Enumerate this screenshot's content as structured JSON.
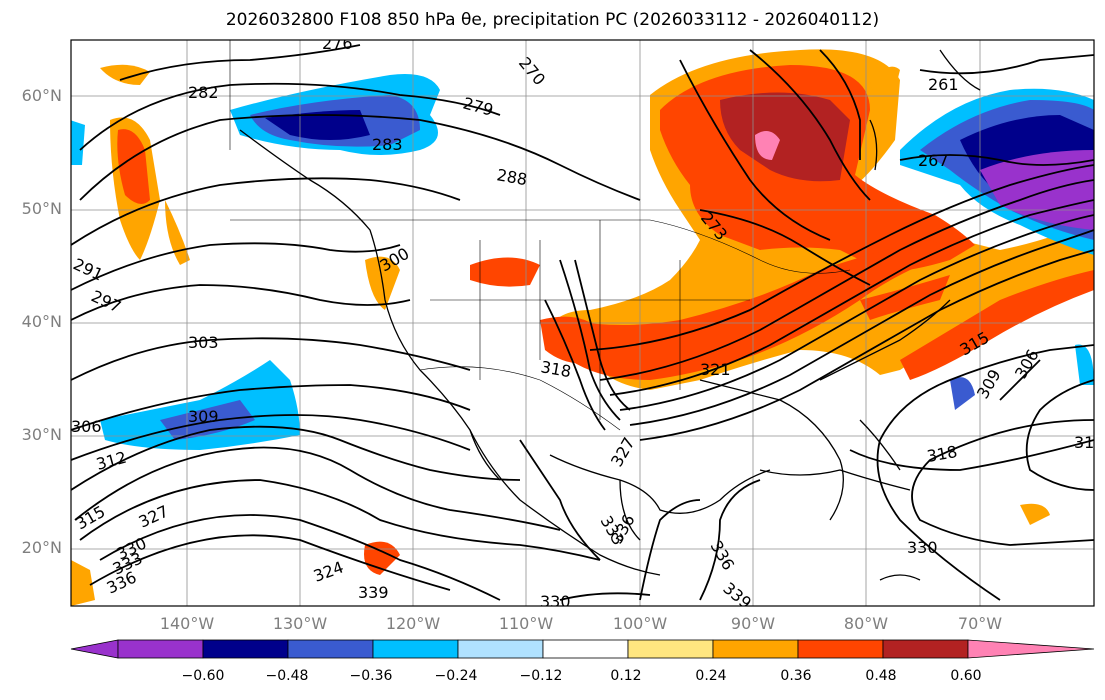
{
  "title": "2026032800 F108 850 hPa θe, precipitation PC (2026033112 - 2026040112)",
  "lat_labels": [
    "60°N",
    "50°N",
    "40°N",
    "30°N",
    "20°N"
  ],
  "lon_labels": [
    "140°W",
    "130°W",
    "120°W",
    "110°W",
    "100°W",
    "90°W",
    "80°W",
    "70°W"
  ],
  "contour_labels": [
    "276",
    "270",
    "282",
    "279",
    "261",
    "283",
    "288",
    "273",
    "267",
    "291",
    "297",
    "300",
    "303",
    "318",
    "321",
    "306",
    "309",
    "312",
    "315",
    "327",
    "330",
    "333",
    "336",
    "339",
    "324",
    "318",
    "31"
  ],
  "colorbar": {
    "ticks": [
      "−0.60",
      "−0.48",
      "−0.36",
      "−0.24",
      "−0.12",
      "0.12",
      "0.24",
      "0.36",
      "0.48",
      "0.60"
    ],
    "colors": [
      "#9932cc",
      "#00008b",
      "#3a5bd0",
      "#00bfff",
      "#b0e2ff",
      "#ffffff",
      "#ffe680",
      "#ffa500",
      "#ff4500",
      "#b22222",
      "#ff82b4"
    ]
  }
}
